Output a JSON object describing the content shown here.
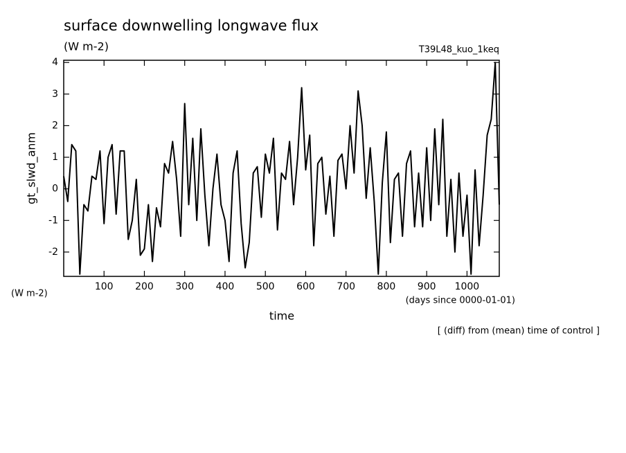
{
  "chart_data": {
    "type": "line",
    "title": "surface downwelling longwave flux",
    "subtitle": "(W m-2)",
    "run_label": "T39L48_kuo_1keq",
    "y_label": "gt_slwd_anm",
    "y_unit": "(W m-2)",
    "x_label": "time",
    "x_unit": "(days since 0000-01-01)",
    "note": "[ (diff) from (mean) time of control ]",
    "color": "#000000",
    "x": [
      0,
      10,
      20,
      30,
      40,
      50,
      60,
      70,
      80,
      90,
      100,
      110,
      120,
      130,
      140,
      150,
      160,
      170,
      180,
      190,
      200,
      210,
      220,
      230,
      240,
      250,
      260,
      270,
      280,
      290,
      300,
      310,
      320,
      330,
      340,
      350,
      360,
      370,
      380,
      390,
      400,
      410,
      420,
      430,
      440,
      450,
      460,
      470,
      480,
      490,
      500,
      510,
      520,
      530,
      540,
      550,
      560,
      570,
      580,
      590,
      600,
      610,
      620,
      630,
      640,
      650,
      660,
      670,
      680,
      690,
      700,
      710,
      720,
      730,
      740,
      750,
      760,
      770,
      780,
      790,
      800,
      810,
      820,
      830,
      840,
      850,
      860,
      870,
      880,
      890,
      900,
      910,
      920,
      930,
      940,
      950,
      960,
      970,
      980,
      990,
      1000,
      1010,
      1020,
      1030,
      1040,
      1050,
      1060,
      1070,
      1080
    ],
    "values": [
      0.4,
      -0.4,
      1.4,
      1.2,
      -2.7,
      -0.5,
      -0.7,
      0.4,
      0.3,
      1.2,
      -1.1,
      1,
      1.4,
      -0.8,
      1.2,
      1.2,
      -1.6,
      -1,
      0.3,
      -2.1,
      -1.9,
      -0.5,
      -2.3,
      -0.6,
      -1.2,
      0.8,
      0.5,
      1.5,
      0.3,
      -1.5,
      2.7,
      -0.5,
      1.6,
      -1,
      1.9,
      -0.2,
      -1.8,
      0,
      1.1,
      -0.5,
      -1,
      -2.3,
      0.5,
      1.2,
      -1.1,
      -2.5,
      -1.7,
      0.5,
      0.7,
      -0.9,
      1.1,
      0.5,
      1.6,
      -1.3,
      0.5,
      0.3,
      1.5,
      -0.5,
      1,
      3.2,
      0.6,
      1.7,
      -1.8,
      0.8,
      1,
      -0.8,
      0.4,
      -1.5,
      0.9,
      1.1,
      0,
      2,
      0.5,
      3.1,
      2,
      -0.3,
      1.3,
      -0.4,
      -2.7,
      0.2,
      1.8,
      -1.7,
      0.3,
      0.5,
      -1.5,
      0.8,
      1.2,
      -1.2,
      0.5,
      -1.2,
      1.3,
      -1,
      1.9,
      -0.5,
      2.2,
      -1.5,
      0.3,
      -2,
      0.5,
      -1.5,
      -0.2,
      -2.7,
      0.6,
      -1.8,
      -0.2,
      1.7,
      2.2,
      4,
      -0.5
    ],
    "xlim": [
      0,
      1080
    ],
    "ylim": [
      -2.77,
      4.07
    ],
    "xticks": [
      100,
      200,
      300,
      400,
      500,
      600,
      700,
      800,
      900,
      1000
    ],
    "yticks": [
      -2,
      -1,
      0,
      1,
      2,
      3,
      4
    ]
  }
}
